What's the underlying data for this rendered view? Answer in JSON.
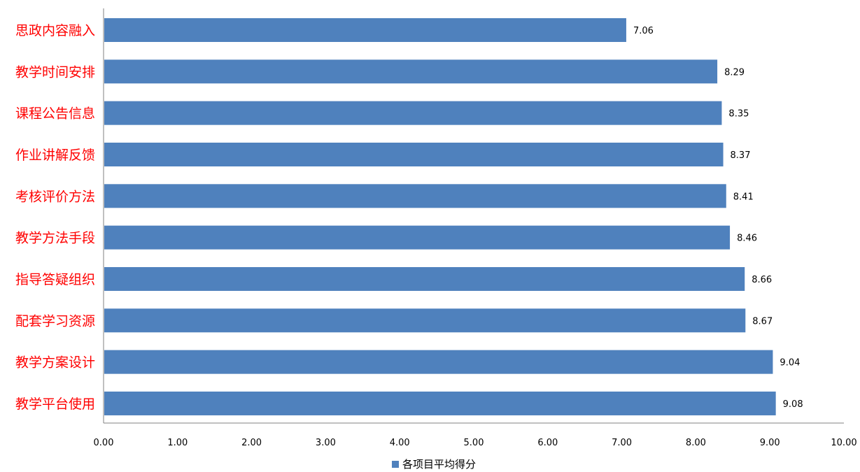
{
  "chart_data": {
    "type": "bar",
    "orientation": "horizontal",
    "categories": [
      "思政内容融入",
      "教学时间安排",
      "课程公告信息",
      "作业讲解反馈",
      "考核评价方法",
      "教学方法手段",
      "指导答疑组织",
      "配套学习资源",
      "教学方案设计",
      "教学平台使用"
    ],
    "series": [
      {
        "name": "各项目平均得分",
        "values": [
          7.06,
          8.29,
          8.35,
          8.37,
          8.41,
          8.46,
          8.66,
          8.67,
          9.04,
          9.08
        ],
        "data_labels": [
          "7.06",
          "8.29",
          "8.35",
          "8.37",
          "8.41",
          "8.46",
          "8.66",
          "8.67",
          "9.04",
          "9.08"
        ]
      }
    ],
    "x_ticks": [
      "0.00",
      "1.00",
      "2.00",
      "3.00",
      "4.00",
      "5.00",
      "6.00",
      "7.00",
      "8.00",
      "9.00",
      "10.00"
    ],
    "xlim": [
      0,
      10
    ],
    "grid": false,
    "legend": "bottom-center"
  },
  "colors": {
    "bar": "#4F81BD",
    "category_label": "#FF0000",
    "axis": "#808080"
  }
}
